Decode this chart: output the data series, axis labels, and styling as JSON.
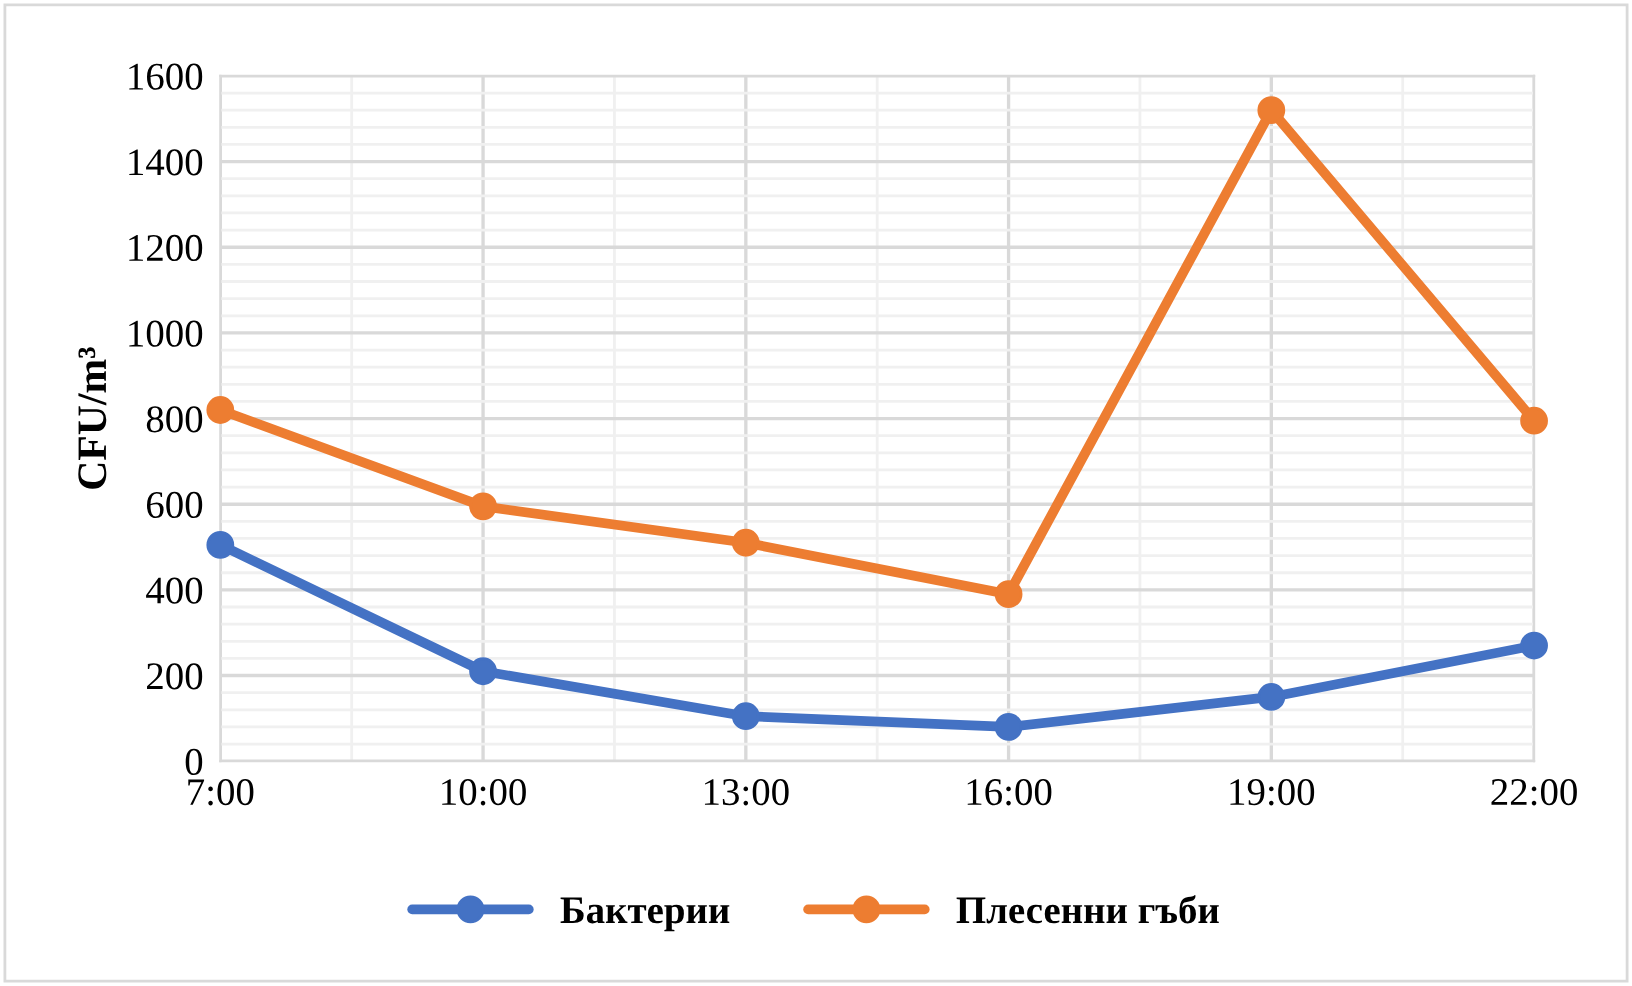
{
  "chart_data": {
    "type": "line",
    "ylabel": "CFU/m³",
    "categories": [
      "7:00",
      "10:00",
      "13:00",
      "16:00",
      "19:00",
      "22:00"
    ],
    "series": [
      {
        "name": "Бактерии",
        "color": "#4472c4",
        "values": [
          505,
          210,
          105,
          80,
          150,
          270
        ]
      },
      {
        "name": "Плесенни гъби",
        "color": "#ed7d31",
        "values": [
          820,
          595,
          510,
          390,
          1520,
          795
        ]
      }
    ],
    "ylim": [
      0,
      1600
    ],
    "yticks": [
      0,
      200,
      400,
      600,
      800,
      1000,
      1200,
      1400,
      1600
    ],
    "grid": true,
    "legend": "bottom",
    "marker": "circle",
    "line_style": "solid"
  }
}
